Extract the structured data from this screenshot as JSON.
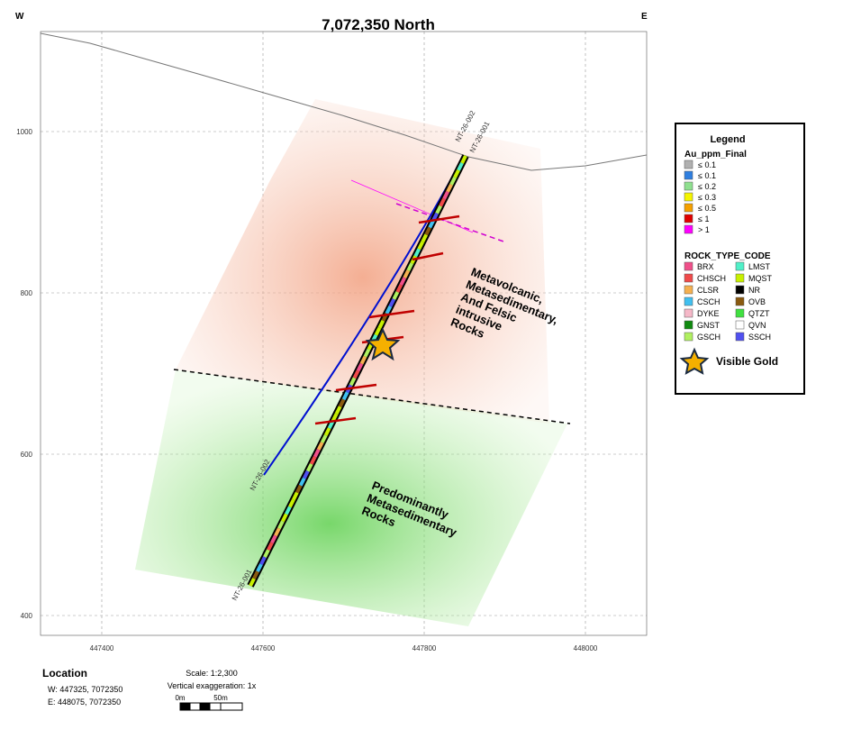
{
  "section": {
    "title": "7,072,350 North",
    "west": "W",
    "east": "E",
    "xticks": [
      447400,
      447600,
      447800,
      448000
    ],
    "yticks": [
      1000,
      800,
      600,
      400
    ],
    "holes": [
      "NT-26-002",
      "NT-26-001",
      "NT-26-002",
      "NT-26-001"
    ],
    "upper_unit": [
      "Metavolcanic,",
      "Metasedimentary,",
      "And Felsic",
      "intrusive",
      "Rocks"
    ],
    "lower_unit": [
      "Predominantly",
      "Metasedimentary",
      "Rocks"
    ]
  },
  "legend": {
    "title": "Legend",
    "au_title": "Au_ppm_Final",
    "au": [
      {
        "label": "≤ 0.1",
        "color": "#b0b0b0"
      },
      {
        "label": "≤ 0.1",
        "color": "#2f7fe0"
      },
      {
        "label": "≤ 0.2",
        "color": "#8fe08f"
      },
      {
        "label": "≤ 0.3",
        "color": "#f5f500"
      },
      {
        "label": "≤ 0.5",
        "color": "#f5a000"
      },
      {
        "label": "≤ 1",
        "color": "#e00000"
      },
      {
        "label": "> 1",
        "color": "#ff00ff"
      }
    ],
    "rock_title": "ROCK_TYPE_CODE",
    "rocks": [
      {
        "label": "BRX",
        "color": "#f0508a"
      },
      {
        "label": "LMST",
        "color": "#50f0c8"
      },
      {
        "label": "CHSCH",
        "color": "#f04a4a"
      },
      {
        "label": "MQST",
        "color": "#c8f000"
      },
      {
        "label": "CLSR",
        "color": "#f5b050"
      },
      {
        "label": "NR",
        "color": "#000000"
      },
      {
        "label": "CSCH",
        "color": "#40c0f0"
      },
      {
        "label": "OVB",
        "color": "#8a5a10"
      },
      {
        "label": "DYKE",
        "color": "#f5b8c8"
      },
      {
        "label": "QTZT",
        "color": "#40e040"
      },
      {
        "label": "GNST",
        "color": "#108a10"
      },
      {
        "label": "QVN",
        "color": "#ffffff"
      },
      {
        "label": "GSCH",
        "color": "#b0f060"
      },
      {
        "label": "SSCH",
        "color": "#5050f0"
      }
    ],
    "gold": "Visible Gold"
  },
  "location": {
    "title": "Location",
    "w": "W:  447325, 7072350",
    "e": "E:  448075, 7072350"
  },
  "scale": {
    "ratio": "Scale: 1:2,300",
    "exaggeration": "Vertical exaggeration: 1x",
    "start": "0m",
    "end": "50m"
  }
}
